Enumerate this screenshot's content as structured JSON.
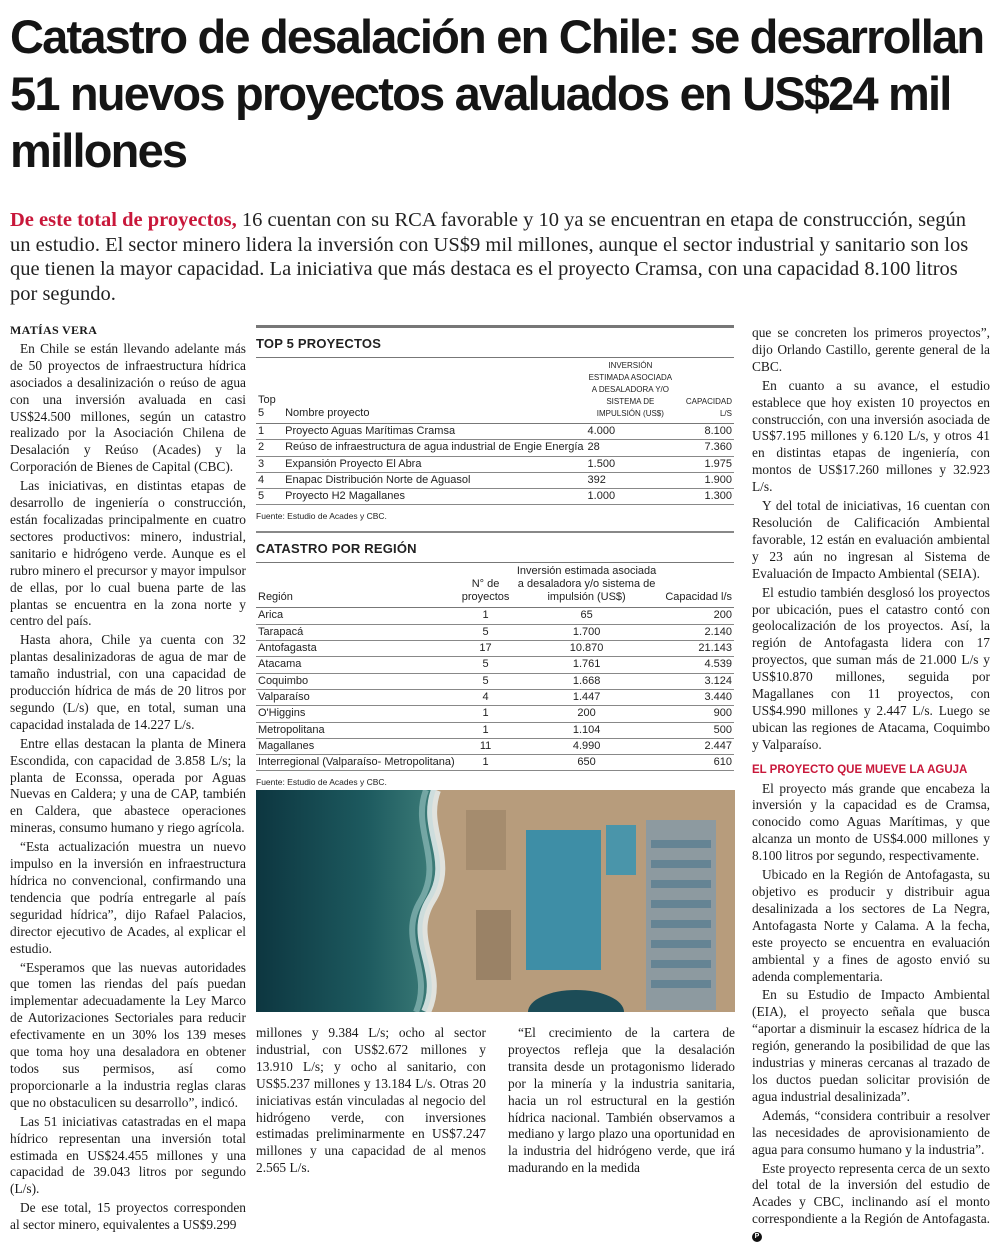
{
  "headline": "Catastro de desalación en Chile: se desarrollan 51 nuevos proyectos avaluados en US$24 mil millones",
  "lede": {
    "lead": "De este total de proyectos,",
    "text": " 16 cuentan con su RCA favorable y 10 ya se encuentran en etapa de construcción, según un estudio. El sector minero lidera la inversión con US$9 mil millones, aunque el sector industrial y sanitario son los que tienen la mayor capacidad. La iniciativa que más destaca es el proyecto Cramsa, con una capacidad 8.100 litros por segundo."
  },
  "byline": "MATÍAS VERA",
  "left_column": [
    "En Chile se están llevando adelante más de 50 proyectos de infraestructura hídrica asociados a desalinización o reúso de agua con una inversión avaluada en casi US$24.500 millones, según un catastro realizado por la Asociación Chilena de Desalación y Reúso (Acades) y la Corporación de Bienes de Capital (CBC).",
    "Las iniciativas, en distintas etapas de desarrollo de ingeniería o construcción, están focalizadas principalmente en cuatro sectores productivos: minero, industrial, sanitario e hidrógeno verde. Aunque es el rubro minero el precursor y mayor impulsor de ellas, por lo cual buena parte de las plantas se encuentra en la zona norte y centro del país.",
    "Hasta ahora, Chile ya cuenta con 32 plantas desalinizadoras de agua de mar de tamaño industrial, con una capacidad de producción hídrica de más de 20 litros por segundo (L/s) que, en total, suman una capacidad instalada de 14.227 L/s.",
    "Entre ellas destacan la planta de Minera Escondida, con capacidad de 3.858 L/s; la planta de Econssa, operada por Aguas Nuevas en Caldera; y una de CAP, también en Caldera, que abastece operaciones mineras, consumo humano y riego agrícola.",
    "“Esta actualización muestra un nuevo impulso en la inversión en infraestructura hídrica no convencional, confirmando una tendencia que podría entregarle al país seguridad hídrica”, dijo Rafael Palacios, director ejecutivo de Acades, al explicar el estudio.",
    "“Esperamos que las nuevas autoridades que tomen las riendas del país puedan implementar adecuadamente la Ley Marco de Autorizaciones Sectoriales para reducir efectivamente en un 30% los 139 meses que toma hoy una desaladora en obtener todos sus permisos, así como proporcionarle a la industria reglas claras que no obstaculicen su desarrollo”, indicó.",
    "Las 51 iniciativas catastradas en el mapa hídrico representan una inversión total estimada en US$24.455 millones y una capacidad de 39.043 litros por segundo (L/s).",
    "De ese total, 15 proyectos corresponden al sector minero, equivalentes a US$9.299"
  ],
  "middle_column_1": [
    "millones y 9.384 L/s; ocho al sector industrial, con US$2.672 millones y 13.910 L/s; y ocho al sanitario, con US$5.237 millones y 13.184 L/s. Otras 20 iniciativas están vinculadas al negocio del hidrógeno verde, con inversiones estimadas preliminarmente en US$7.247 millones y una capacidad de al menos 2.565 L/s."
  ],
  "middle_column_2": [
    "“El crecimiento de la cartera de proyectos refleja que la desalación transita desde un protagonismo liderado por la minería y la industria sanitaria, hacia un rol estructural en la gestión hídrica nacional. También observamos a mediano y largo plazo una oportunidad en la industria del hidrógeno verde, que irá madurando en la medida"
  ],
  "right_column": [
    "que se concreten los primeros proyectos”, dijo Orlando Castillo, gerente general de la CBC.",
    "En cuanto a su avance, el estudio establece que hoy existen 10 proyectos en construcción, con una inversión asociada de US$7.195 millones y 6.120 L/s, y otros 41 en distintas etapas de ingeniería, con montos de US$17.260 millones y 32.923 L/s.",
    "Y del total de iniciativas, 16 cuentan con Resolución de Calificación Ambiental favorable, 12 están en evaluación ambiental y 23 aún no ingresan al Sistema de Evaluación de Impacto Ambiental (SEIA).",
    "El estudio también desglosó los proyectos por ubicación, pues el catastro contó con geolocalización de los proyectos. Así, la región de Antofagasta lidera con 17 proyectos, que suman más de 21.000 L/s y US$10.870 millones, seguida por Magallanes con 11 proyectos, con US$4.990 millones y 2.447 L/s. Luego se ubican las regiones de Atacama, Coquimbo y Valparaíso."
  ],
  "right_subhead": "EL PROYECTO QUE MUEVE LA AGUJA",
  "right_column_2": [
    "El proyecto más grande que encabeza la inversión y la capacidad es de Cramsa, conocido como Aguas Marítimas, y que alcanza un monto de US$4.000 millones y 8.100 litros por segundo, respectivamente.",
    "Ubicado en la Región de Antofagasta, su objetivo es producir y distribuir agua desalinizada a los sectores de La Negra, Antofagasta Norte y Calama. A la fecha, este proyecto se encuentra en evaluación ambiental y a fines de agosto envió su adenda complementaria.",
    "En su Estudio de Impacto Ambiental (EIA), el proyecto señala que busca “aportar a disminuir la escasez hídrica de la región, generando la posibilidad de que las industrias y mineras cercanas al trazado de los ductos puedan solicitar provisión de agua industrial desalinizada”.",
    "Además, “considera contribuir a resolver las necesidades de aprovisionamiento de agua para consumo humano y la industria”.",
    "Este proyecto representa cerca de un sexto del total de la inversión del estudio de Acades y CBC, inclinando así el monto correspondiente a la Región de Antofagasta."
  ],
  "end_mark": "P",
  "top5": {
    "title": "TOP 5 PROYECTOS",
    "headers": [
      "Top 5",
      "Nombre proyecto",
      "Inversión estimada asociada a desaladora y/o sistema de impulsión (US$)",
      "Capacidad l/s"
    ],
    "rows": [
      [
        "1",
        "Proyecto Aguas Marítimas Cramsa",
        "4.000",
        "8.100"
      ],
      [
        "2",
        "Reúso de infraestructura de agua industrial de Engie Energía",
        "28",
        "7.360"
      ],
      [
        "3",
        "Expansión Proyecto El Abra",
        "1.500",
        "1.975"
      ],
      [
        "4",
        "Enapac Distribución Norte de Aguasol",
        "392",
        "1.900"
      ],
      [
        "5",
        "Proyecto H2 Magallanes",
        "1.000",
        "1.300"
      ]
    ],
    "source": "Fuente: Estudio de Acades y CBC."
  },
  "region": {
    "title": "CATASTRO POR REGIÓN",
    "headers": [
      "Región",
      "N° de proyectos",
      "Inversión estimada asociada a desaladora y/o sistema de impulsión (US$)",
      "Capacidad l/s"
    ],
    "rows": [
      [
        "Arica",
        "1",
        "65",
        "200"
      ],
      [
        "Tarapacá",
        "5",
        "1.700",
        "2.140"
      ],
      [
        "Antofagasta",
        "17",
        "10.870",
        "21.143"
      ],
      [
        "Atacama",
        "5",
        "1.761",
        "4.539"
      ],
      [
        "Coquimbo",
        "5",
        "1.668",
        "3.124"
      ],
      [
        "Valparaíso",
        "4",
        "1.447",
        "3.440"
      ],
      [
        "O'Higgins",
        "1",
        "200",
        "900"
      ],
      [
        "Metropolitana",
        "1",
        "1.104",
        "500"
      ],
      [
        "Magallanes",
        "11",
        "4.990",
        "2.447"
      ],
      [
        "Interregional (Valparaíso- Metropolitana)",
        "1",
        "650",
        "610"
      ]
    ],
    "source": "Fuente: Estudio de Acades y CBC."
  },
  "colors": {
    "accent": "#c8173a",
    "text": "#1a1a1a",
    "rule": "#777777"
  }
}
